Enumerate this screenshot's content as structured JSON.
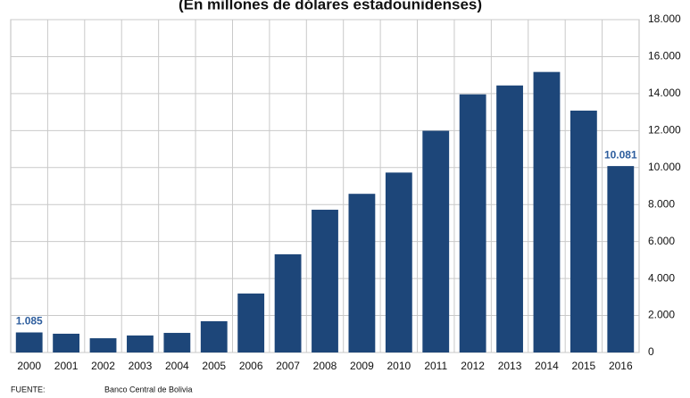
{
  "chart_data": {
    "type": "bar",
    "subtitle": "(En millones de dólares estadounidenses)",
    "categories": [
      "2000",
      "2001",
      "2002",
      "2003",
      "2004",
      "2005",
      "2006",
      "2007",
      "2008",
      "2009",
      "2010",
      "2011",
      "2012",
      "2013",
      "2014",
      "2015",
      "2016"
    ],
    "values": [
      1085,
      1015,
      770,
      920,
      1060,
      1690,
      3190,
      5310,
      7720,
      8580,
      9730,
      11990,
      13960,
      14440,
      15170,
      13080,
      10081
    ],
    "value_labels": [
      "1.085",
      null,
      null,
      null,
      null,
      null,
      null,
      null,
      null,
      null,
      null,
      null,
      null,
      null,
      null,
      null,
      "10.081"
    ],
    "color": "#1d4679",
    "ylim": [
      0,
      18000
    ],
    "yticks": [
      0,
      {
        "value": 2000,
        "label": "2.000"
      },
      {
        "value": 4000,
        "label": "4.000"
      },
      {
        "value": 6000,
        "label": "6.000"
      },
      {
        "value": 8000,
        "label": "8.000"
      },
      {
        "value": 10000,
        "label": "10.000"
      },
      {
        "value": 12000,
        "label": "12.000"
      },
      {
        "value": 14000,
        "label": "14.000"
      },
      {
        "value": 16000,
        "label": "16.000"
      },
      {
        "value": 18000,
        "label": "18.000"
      }
    ],
    "y_axis_side": "right",
    "grid": true,
    "source_label": "FUENTE:",
    "source": "Banco Central de Bolivia"
  }
}
